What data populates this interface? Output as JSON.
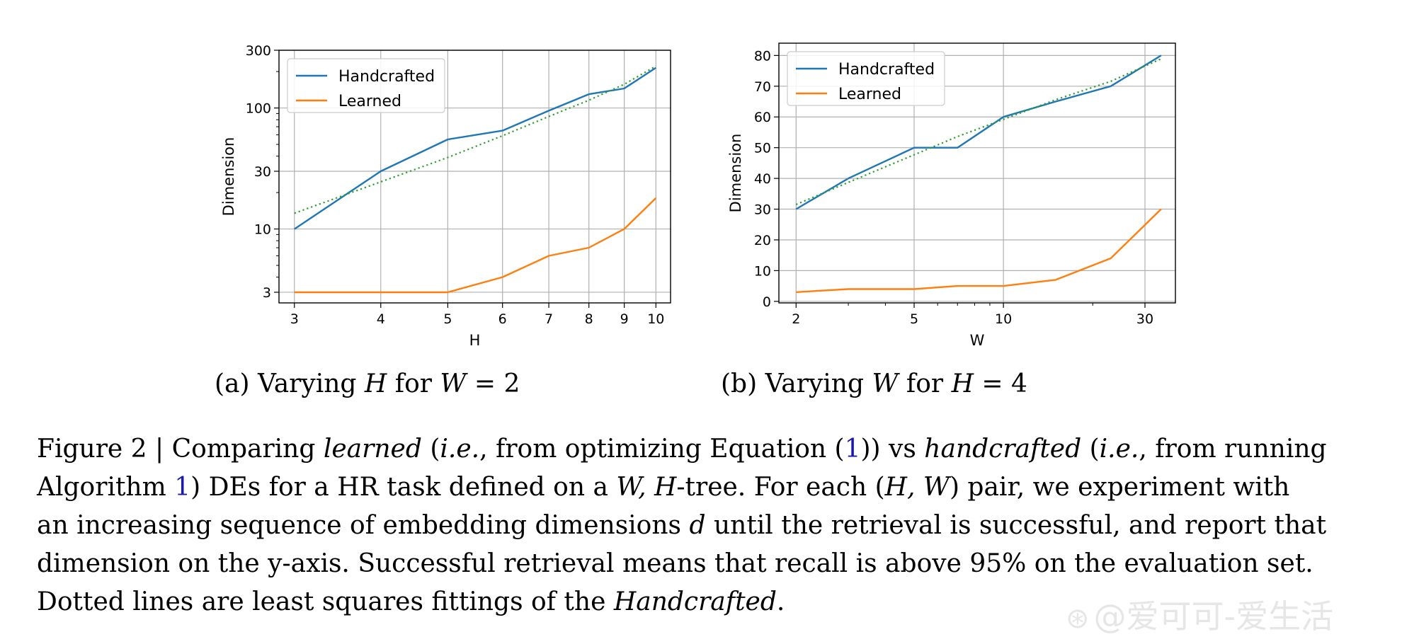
{
  "subcaptions": {
    "a": {
      "prefix": "(a) Varying ",
      "var": "H",
      "mid": " for ",
      "var2": "W",
      "suffix": " = 2"
    },
    "b": {
      "prefix": "(b) Varying ",
      "var": "W",
      "mid": " for ",
      "var2": "H",
      "suffix": " = 4"
    }
  },
  "caption": {
    "l1_a": "Figure 2 | Comparing ",
    "l1_b": "learned",
    "l1_c": " (",
    "l1_d": "i.e.",
    "l1_e": ", from optimizing Equation (",
    "l1_ref": "1",
    "l1_f": ")) vs ",
    "l1_g": "handcrafted",
    "l1_h": " (",
    "l1_i": "i.e.",
    "l1_j": ", from running",
    "l2_a": "Algorithm ",
    "l2_ref": "1",
    "l2_b": ") DEs for a HR task defined on a ",
    "l2_c": "W, H",
    "l2_d": "-tree. For each (",
    "l2_e": "H, W",
    "l2_f": ") pair, we experiment with",
    "l3_a": "an increasing sequence of embedding dimensions ",
    "l3_b": "d",
    "l3_c": " until the retrieval is successful, and report that",
    "l4": "dimension on the y-axis. Successful retrieval means that recall is above 95% on the evaluation set.",
    "l5_a": "Dotted lines are least squares fittings of the ",
    "l5_b": "Handcrafted",
    "l5_c": "."
  },
  "watermark": {
    "logo": "⊛",
    "text": "@爱可可-爱生活"
  },
  "chart_data": [
    {
      "type": "line",
      "xlabel": "H",
      "ylabel": "Dimension",
      "x": [
        3,
        4,
        5,
        6,
        7,
        8,
        9,
        10
      ],
      "xscale": "log",
      "yscale": "log",
      "xlim": [
        2.85,
        10.5
      ],
      "ylim": [
        2.45,
        300
      ],
      "xticks": [
        3,
        4,
        5,
        6,
        7,
        8,
        9,
        10
      ],
      "yticks": [
        3,
        10,
        30,
        100,
        300
      ],
      "grid": true,
      "legend_position": "upper-left",
      "series": [
        {
          "name": "Handcrafted",
          "color": "#1f77b4",
          "style": "solid",
          "values": [
            10,
            30,
            55,
            65,
            95,
            130,
            145,
            215
          ]
        },
        {
          "name": "Learned",
          "color": "#ff7f0e",
          "style": "solid",
          "values": [
            3,
            3,
            3,
            4,
            6,
            7,
            10,
            18
          ]
        },
        {
          "color": "#2ca02c",
          "style": "dotted",
          "values": [
            13.5,
            24.5,
            39,
            59,
            85,
            116,
            157,
            222
          ]
        }
      ]
    },
    {
      "type": "line",
      "xlabel": "W",
      "ylabel": "Dimension",
      "x": [
        2,
        3,
        5,
        7,
        10,
        15,
        23,
        34
      ],
      "xscale": "log",
      "yscale": "linear",
      "xlim": [
        1.75,
        38
      ],
      "ylim": [
        -0.5,
        84
      ],
      "xticks": [
        2,
        5,
        10,
        30
      ],
      "yticks": [
        0,
        10,
        20,
        30,
        40,
        50,
        60,
        70,
        80
      ],
      "grid": true,
      "legend_position": "upper-left",
      "series": [
        {
          "name": "Handcrafted",
          "color": "#1f77b4",
          "style": "solid",
          "values": [
            30,
            40,
            50,
            50,
            60,
            65,
            70,
            80
          ]
        },
        {
          "name": "Learned",
          "color": "#ff7f0e",
          "style": "solid",
          "values": [
            3,
            4,
            4,
            5,
            5,
            7,
            14,
            30
          ]
        },
        {
          "color": "#2ca02c",
          "style": "dotted",
          "values": [
            31.5,
            38.7,
            47.7,
            53.6,
            59.2,
            65.6,
            71.6,
            78.9
          ]
        }
      ]
    }
  ]
}
